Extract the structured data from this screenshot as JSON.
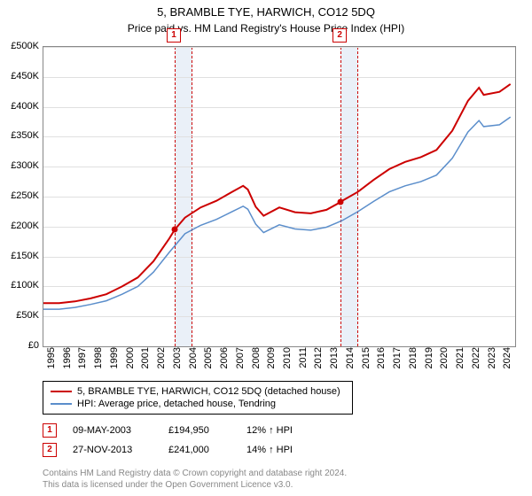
{
  "title": "5, BRAMBLE TYE, HARWICH, CO12 5DQ",
  "subtitle": "Price paid vs. HM Land Registry's House Price Index (HPI)",
  "chart": {
    "type": "line",
    "background_color": "#ffffff",
    "grid_color": "#e0e0e0",
    "border_color": "#888888",
    "shade_color": "#eaf0f8",
    "shade_border_color": "#cc0000",
    "y_axis": {
      "min": 0,
      "max": 500000,
      "step": 50000,
      "labels": [
        "£0",
        "£50K",
        "£100K",
        "£150K",
        "£200K",
        "£250K",
        "£300K",
        "£350K",
        "£400K",
        "£450K",
        "£500K"
      ]
    },
    "x_axis": {
      "min": 1995,
      "max": 2025,
      "labels": [
        "1995",
        "1996",
        "1997",
        "1998",
        "1999",
        "2000",
        "2001",
        "2002",
        "2003",
        "2004",
        "2005",
        "2006",
        "2007",
        "2008",
        "2009",
        "2010",
        "2011",
        "2012",
        "2013",
        "2014",
        "2015",
        "2016",
        "2017",
        "2018",
        "2019",
        "2020",
        "2021",
        "2022",
        "2023",
        "2024"
      ]
    },
    "series": [
      {
        "name": "5, BRAMBLE TYE, HARWICH, CO12 5DQ (detached house)",
        "color": "#cc0000",
        "width": 2,
        "points": [
          [
            1995,
            72000
          ],
          [
            1996,
            72000
          ],
          [
            1997,
            75000
          ],
          [
            1998,
            80000
          ],
          [
            1999,
            87000
          ],
          [
            2000,
            100000
          ],
          [
            2001,
            115000
          ],
          [
            2002,
            142000
          ],
          [
            2003,
            180000
          ],
          [
            2003.35,
            194950
          ],
          [
            2004,
            215000
          ],
          [
            2005,
            232000
          ],
          [
            2006,
            243000
          ],
          [
            2007,
            258000
          ],
          [
            2007.7,
            268000
          ],
          [
            2008,
            262000
          ],
          [
            2008.5,
            233000
          ],
          [
            2009,
            218000
          ],
          [
            2010,
            232000
          ],
          [
            2011,
            224000
          ],
          [
            2012,
            222000
          ],
          [
            2013,
            228000
          ],
          [
            2013.9,
            241000
          ],
          [
            2014,
            243000
          ],
          [
            2015,
            258000
          ],
          [
            2016,
            278000
          ],
          [
            2017,
            296000
          ],
          [
            2018,
            308000
          ],
          [
            2019,
            316000
          ],
          [
            2020,
            328000
          ],
          [
            2021,
            360000
          ],
          [
            2022,
            410000
          ],
          [
            2022.7,
            432000
          ],
          [
            2023,
            420000
          ],
          [
            2024,
            425000
          ],
          [
            2024.7,
            438000
          ]
        ]
      },
      {
        "name": "HPI: Average price, detached house, Tendring",
        "color": "#5b8ecb",
        "width": 1.5,
        "points": [
          [
            1995,
            62000
          ],
          [
            1996,
            62000
          ],
          [
            1997,
            65000
          ],
          [
            1998,
            70000
          ],
          [
            1999,
            76000
          ],
          [
            2000,
            87000
          ],
          [
            2001,
            100000
          ],
          [
            2002,
            124000
          ],
          [
            2003,
            157000
          ],
          [
            2004,
            188000
          ],
          [
            2005,
            202000
          ],
          [
            2006,
            212000
          ],
          [
            2007,
            225000
          ],
          [
            2007.7,
            234000
          ],
          [
            2008,
            229000
          ],
          [
            2008.5,
            204000
          ],
          [
            2009,
            190000
          ],
          [
            2010,
            203000
          ],
          [
            2011,
            196000
          ],
          [
            2012,
            194000
          ],
          [
            2013,
            199000
          ],
          [
            2014,
            210000
          ],
          [
            2015,
            225000
          ],
          [
            2016,
            242000
          ],
          [
            2017,
            258000
          ],
          [
            2018,
            268000
          ],
          [
            2019,
            275000
          ],
          [
            2020,
            286000
          ],
          [
            2021,
            314000
          ],
          [
            2022,
            358000
          ],
          [
            2022.7,
            377000
          ],
          [
            2023,
            367000
          ],
          [
            2024,
            370000
          ],
          [
            2024.7,
            383000
          ]
        ]
      }
    ],
    "shaded_regions": [
      {
        "start": 2003.35,
        "end": 2004.35
      },
      {
        "start": 2013.9,
        "end": 2014.9
      }
    ],
    "markers": [
      {
        "label": "1",
        "x": 2003.35,
        "y": 194950,
        "label_top": true
      },
      {
        "label": "2",
        "x": 2013.9,
        "y": 241000,
        "label_top": true
      }
    ]
  },
  "legend": {
    "items": [
      {
        "color": "#cc0000",
        "label": "5, BRAMBLE TYE, HARWICH, CO12 5DQ (detached house)"
      },
      {
        "color": "#5b8ecb",
        "label": "HPI: Average price, detached house, Tendring"
      }
    ]
  },
  "sales": [
    {
      "num": "1",
      "date": "09-MAY-2003",
      "price": "£194,950",
      "hpi": "12% ↑ HPI"
    },
    {
      "num": "2",
      "date": "27-NOV-2013",
      "price": "£241,000",
      "hpi": "14% ↑ HPI"
    }
  ],
  "footer": {
    "line1": "Contains HM Land Registry data © Crown copyright and database right 2024.",
    "line2": "This data is licensed under the Open Government Licence v3.0."
  }
}
